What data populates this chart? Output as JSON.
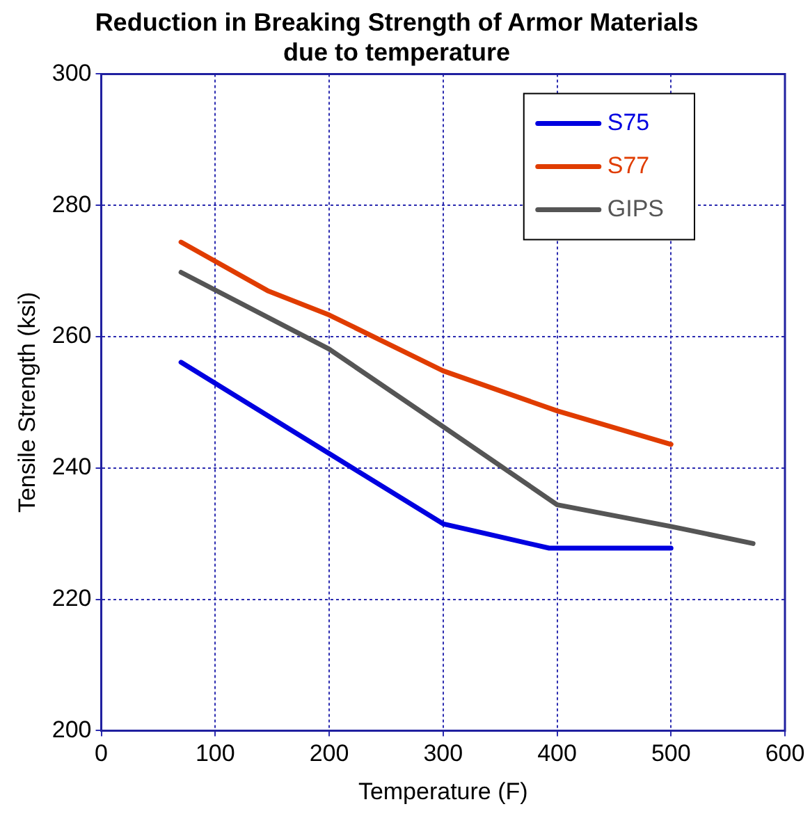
{
  "chart_data": {
    "type": "line",
    "title": "Reduction in Breaking Strength of Armor Materials due to temperature",
    "xlabel": "Temperature (F)",
    "ylabel": "Tensile Strength (ksi)",
    "xlim": [
      0,
      600
    ],
    "xticks": [
      0,
      100,
      200,
      300,
      400,
      500,
      600
    ],
    "ylim": [
      200,
      300
    ],
    "yticks": [
      200,
      220,
      240,
      260,
      280,
      300
    ],
    "grid": true,
    "legend": "top right",
    "marker": "none",
    "line_style": "solid",
    "series": [
      {
        "name": "S75",
        "color": "#0000e0",
        "x": [
          70,
          200,
          300,
          393,
          500
        ],
        "values": [
          256.1,
          242.2,
          231.5,
          227.8,
          227.8
        ]
      },
      {
        "name": "S77",
        "color": "#e03c00",
        "x": [
          70,
          146,
          200,
          300,
          400,
          500
        ],
        "values": [
          274.4,
          267,
          263.3,
          254.8,
          248.7,
          243.6
        ]
      },
      {
        "name": "GIPS",
        "color": "#555555",
        "x": [
          70,
          200,
          300,
          400,
          500,
          572
        ],
        "values": [
          269.8,
          258.1,
          246.3,
          234.4,
          231.1,
          228.5
        ]
      }
    ]
  }
}
